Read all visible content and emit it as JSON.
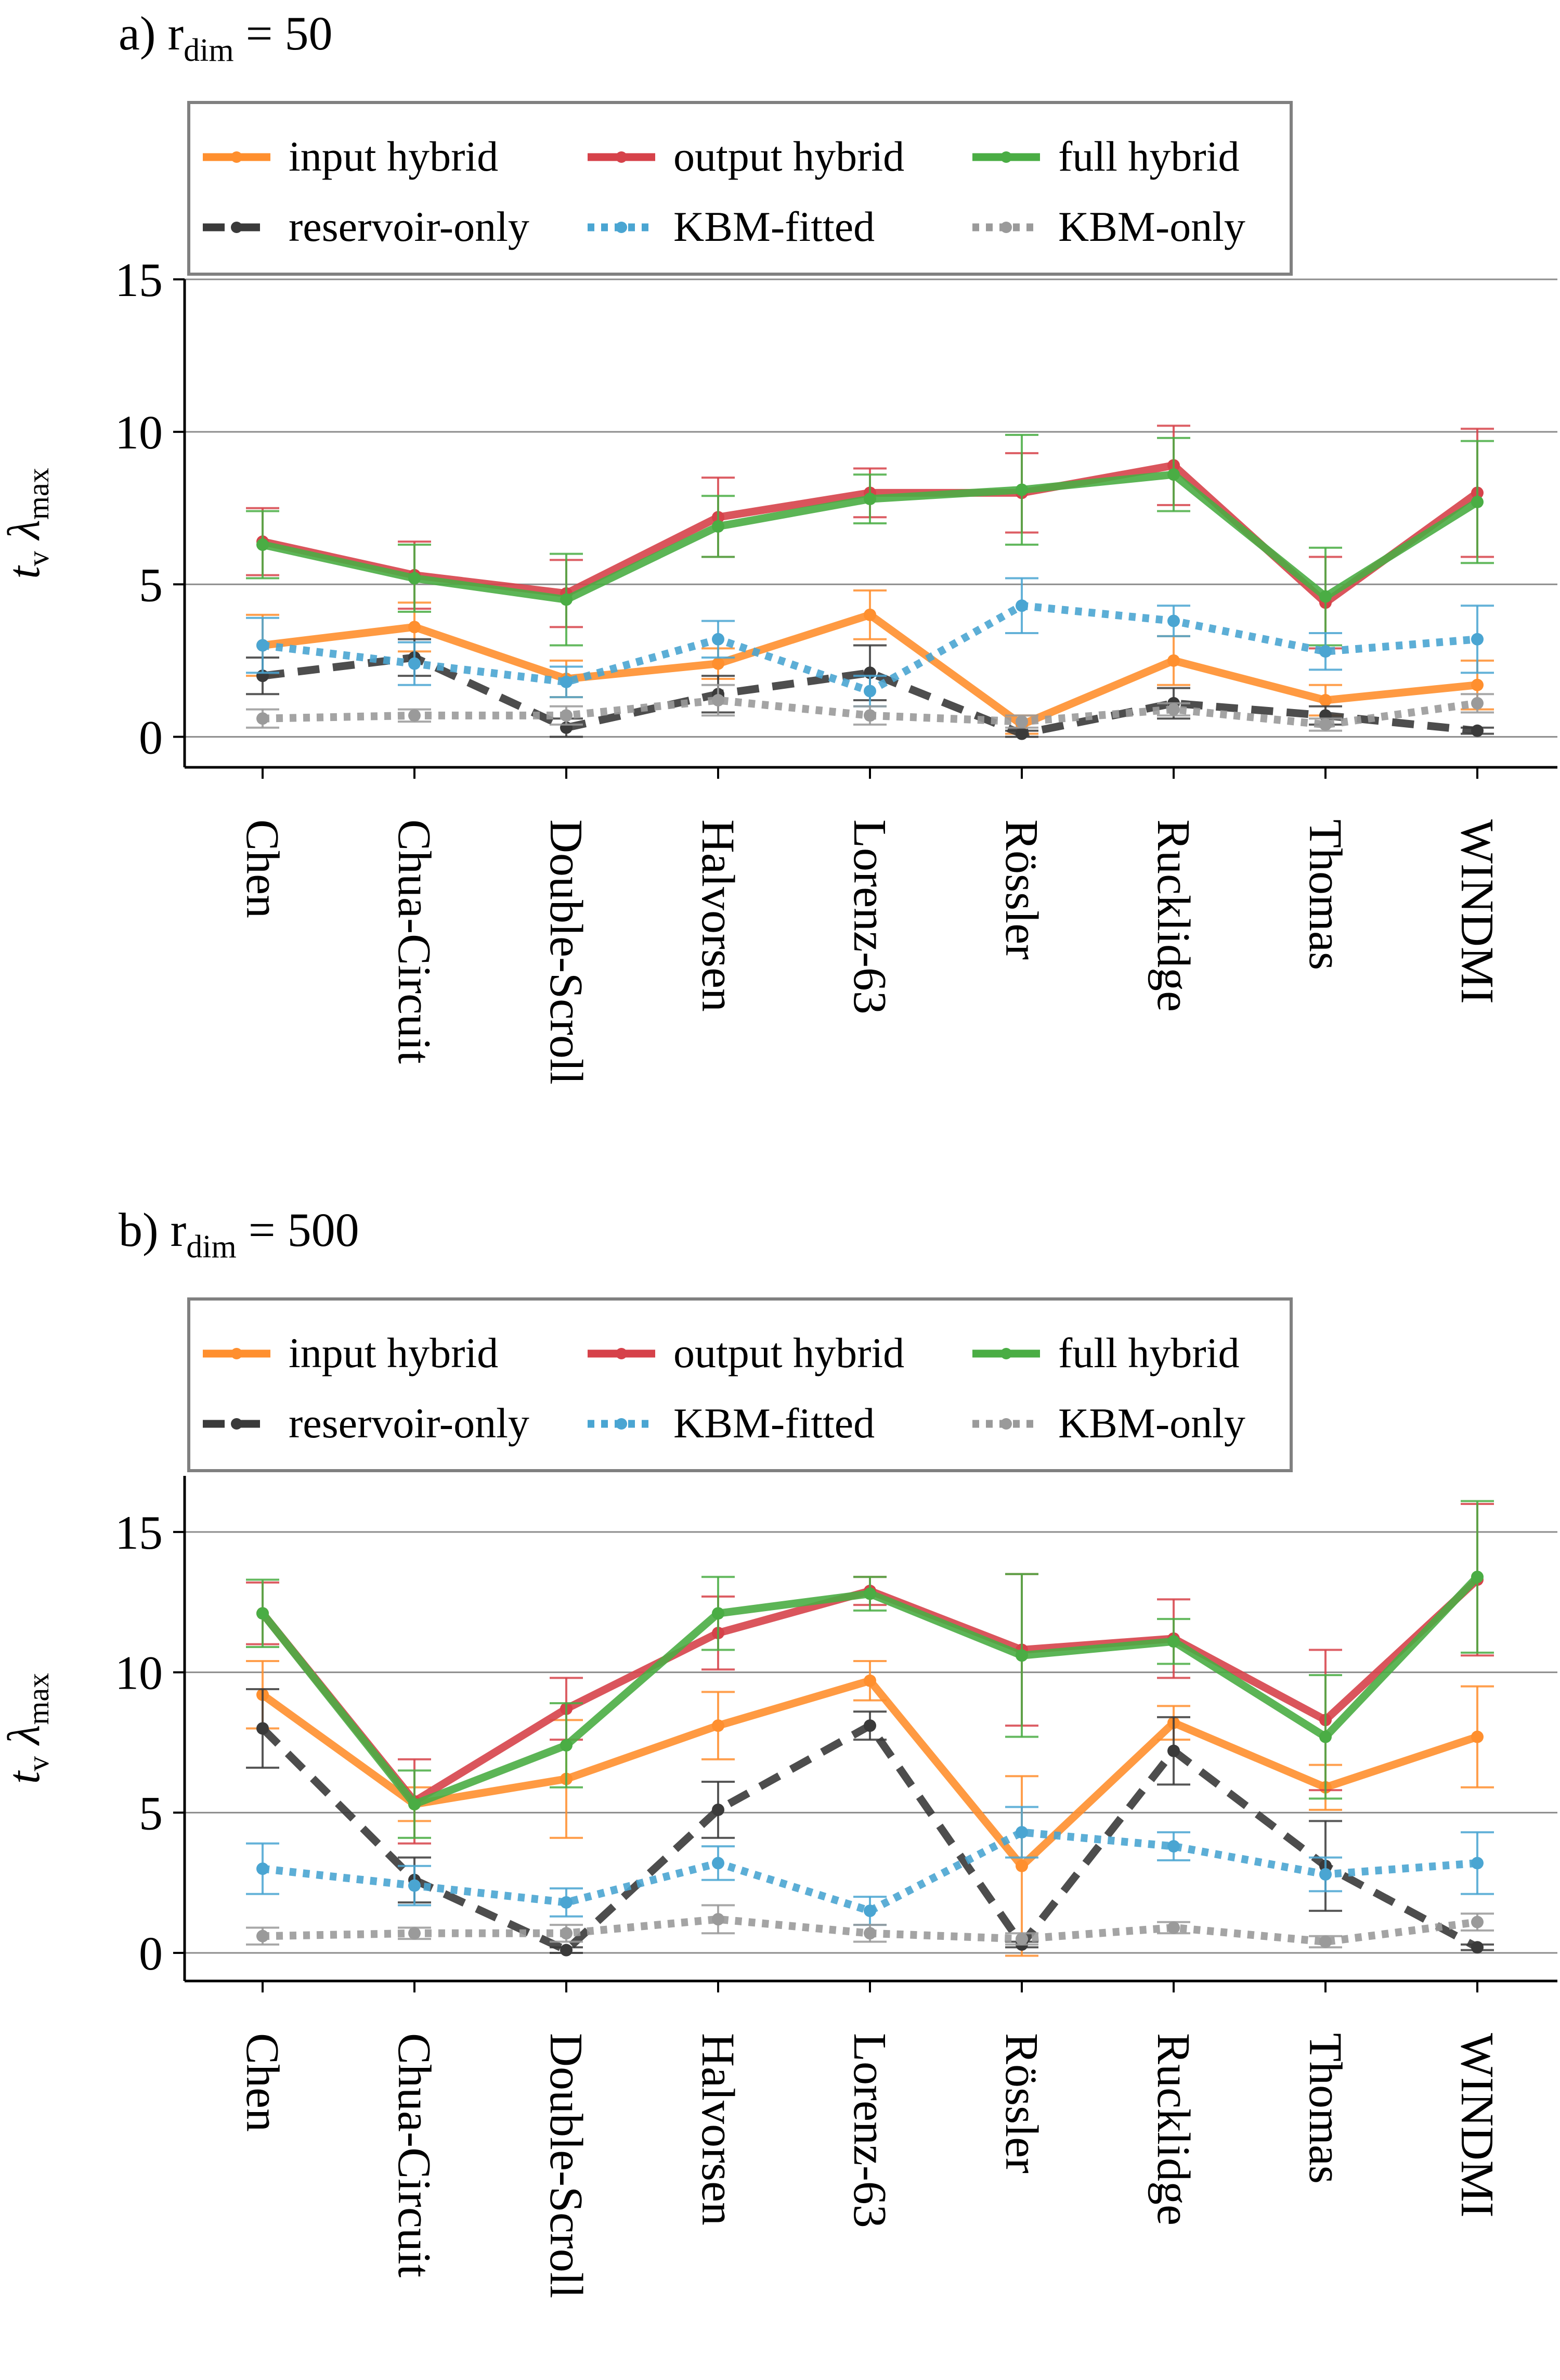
{
  "chart_data": [
    {
      "panel_label": "a)",
      "title_main": "r",
      "title_sub": "dim",
      "title_value": "= 50",
      "type": "line",
      "ylabel_t": "t",
      "ylabel_t_sub": "v",
      "ylabel_lambda": "λ",
      "ylabel_lambda_sub": "max",
      "ylim": [
        -1,
        15
      ],
      "yticks": [
        0,
        5,
        10,
        15
      ],
      "grid": "horizontal",
      "legend_position": "top",
      "categories": [
        "Chen",
        "Chua-Circuit",
        "Double-Scroll",
        "Halvorsen",
        "Lorenz-63",
        "Rössler",
        "Rucklidge",
        "Thomas",
        "WINDMI"
      ],
      "series": [
        {
          "name": "input hybrid",
          "color": "#ff8f2e",
          "dash": "solid",
          "values": [
            3.0,
            3.6,
            1.9,
            2.4,
            4.0,
            0.4,
            2.5,
            1.2,
            1.7
          ],
          "errors": [
            1.0,
            0.8,
            0.6,
            0.5,
            0.8,
            0.3,
            0.8,
            0.5,
            0.8
          ]
        },
        {
          "name": "output hybrid",
          "color": "#d6424a",
          "dash": "solid",
          "values": [
            6.4,
            5.3,
            4.7,
            7.2,
            8.0,
            8.0,
            8.9,
            4.4,
            8.0
          ],
          "errors": [
            1.1,
            1.1,
            1.1,
            1.3,
            0.8,
            1.3,
            1.3,
            1.5,
            2.1
          ]
        },
        {
          "name": "full hybrid",
          "color": "#4aad44",
          "dash": "solid",
          "values": [
            6.3,
            5.2,
            4.5,
            6.9,
            7.8,
            8.1,
            8.6,
            4.6,
            7.7
          ],
          "errors": [
            1.1,
            1.1,
            1.5,
            1.0,
            0.8,
            1.8,
            1.2,
            1.6,
            2.0
          ]
        },
        {
          "name": "reservoir-only",
          "color": "#3a3a3a",
          "dash": "dashed",
          "values": [
            2.0,
            2.6,
            0.3,
            1.4,
            2.1,
            0.1,
            1.1,
            0.7,
            0.2
          ],
          "errors": [
            0.6,
            0.6,
            0.3,
            0.6,
            0.9,
            0.1,
            0.5,
            0.3,
            0.1
          ]
        },
        {
          "name": "KBM-fitted",
          "color": "#4aa5d2",
          "dash": "dotted",
          "values": [
            3.0,
            2.4,
            1.8,
            3.2,
            1.5,
            4.3,
            3.8,
            2.8,
            3.2
          ],
          "errors": [
            0.9,
            0.7,
            0.5,
            0.6,
            0.5,
            0.9,
            0.5,
            0.6,
            1.1
          ]
        },
        {
          "name": "KBM-only",
          "color": "#9a9a9a",
          "dash": "dotted",
          "values": [
            0.6,
            0.7,
            0.7,
            1.2,
            0.7,
            0.5,
            0.9,
            0.4,
            1.1
          ],
          "errors": [
            0.3,
            0.2,
            0.3,
            0.5,
            0.3,
            0.2,
            0.2,
            0.2,
            0.3
          ]
        }
      ]
    },
    {
      "panel_label": "b)",
      "title_main": "r",
      "title_sub": "dim",
      "title_value": "= 500",
      "type": "line",
      "ylabel_t": "t",
      "ylabel_t_sub": "v",
      "ylabel_lambda": "λ",
      "ylabel_lambda_sub": "max",
      "ylim": [
        -1,
        17
      ],
      "yticks": [
        0,
        5,
        10,
        15
      ],
      "grid": "horizontal",
      "legend_position": "top",
      "categories": [
        "Chen",
        "Chua-Circuit",
        "Double-Scroll",
        "Halvorsen",
        "Lorenz-63",
        "Rössler",
        "Rucklidge",
        "Thomas",
        "WINDMI"
      ],
      "series": [
        {
          "name": "input hybrid",
          "color": "#ff8f2e",
          "dash": "solid",
          "values": [
            9.2,
            5.3,
            6.2,
            8.1,
            9.7,
            3.1,
            8.2,
            5.9,
            7.7
          ],
          "errors": [
            1.2,
            0.6,
            2.1,
            1.2,
            0.7,
            3.2,
            0.6,
            0.8,
            1.8
          ]
        },
        {
          "name": "output hybrid",
          "color": "#d6424a",
          "dash": "solid",
          "values": [
            12.1,
            5.4,
            8.7,
            11.4,
            12.9,
            10.8,
            11.2,
            8.3,
            13.3
          ],
          "errors": [
            1.1,
            1.5,
            1.1,
            1.3,
            0.5,
            2.7,
            1.4,
            2.5,
            2.7
          ]
        },
        {
          "name": "full hybrid",
          "color": "#4aad44",
          "dash": "solid",
          "values": [
            12.1,
            5.3,
            7.4,
            12.1,
            12.8,
            10.6,
            11.1,
            7.7,
            13.4
          ],
          "errors": [
            1.2,
            1.2,
            1.5,
            1.3,
            0.6,
            2.9,
            0.8,
            2.2,
            2.7
          ]
        },
        {
          "name": "reservoir-only",
          "color": "#3a3a3a",
          "dash": "dashed",
          "values": [
            8.0,
            2.6,
            0.1,
            5.1,
            8.1,
            0.3,
            7.2,
            3.1,
            0.2
          ],
          "errors": [
            1.4,
            0.8,
            0.1,
            1.0,
            0.5,
            0.1,
            1.2,
            1.6,
            0.1
          ]
        },
        {
          "name": "KBM-fitted",
          "color": "#4aa5d2",
          "dash": "dotted",
          "values": [
            3.0,
            2.4,
            1.8,
            3.2,
            1.5,
            4.3,
            3.8,
            2.8,
            3.2
          ],
          "errors": [
            0.9,
            0.7,
            0.5,
            0.6,
            0.5,
            0.9,
            0.5,
            0.6,
            1.1
          ]
        },
        {
          "name": "KBM-only",
          "color": "#9a9a9a",
          "dash": "dotted",
          "values": [
            0.6,
            0.7,
            0.7,
            1.2,
            0.7,
            0.5,
            0.9,
            0.4,
            1.1
          ],
          "errors": [
            0.3,
            0.2,
            0.3,
            0.5,
            0.3,
            0.2,
            0.2,
            0.2,
            0.3
          ]
        }
      ]
    }
  ]
}
